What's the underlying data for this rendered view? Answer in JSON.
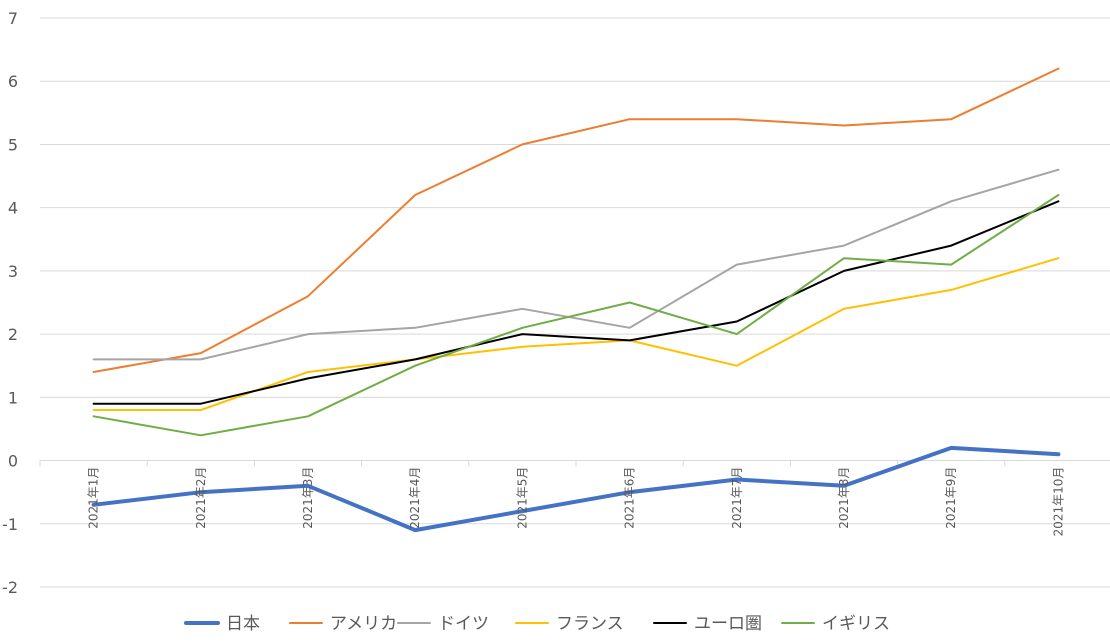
{
  "chart_data": {
    "type": "line",
    "categories": [
      "2021年1月",
      "2021年2月",
      "2021年3月",
      "2021年4月",
      "2021年5月",
      "2021年6月",
      "2021年7月",
      "2021年8月",
      "2021年9月",
      "2021年10月"
    ],
    "ylim": [
      -2,
      7
    ],
    "yticks": [
      -2,
      -1,
      0,
      1,
      2,
      3,
      4,
      5,
      6,
      7
    ],
    "grid": true,
    "legend_position": "bottom",
    "series": [
      {
        "name": "日本",
        "color": "#4472c4",
        "values": [
          -0.7,
          -0.5,
          -0.4,
          -1.1,
          -0.8,
          -0.5,
          -0.3,
          -0.4,
          0.2,
          0.1
        ]
      },
      {
        "name": "アメリカ",
        "color": "#ed7d31",
        "values": [
          1.4,
          1.7,
          2.6,
          4.2,
          5.0,
          5.4,
          5.4,
          5.3,
          5.4,
          6.2
        ]
      },
      {
        "name": "ドイツ",
        "color": "#a5a5a5",
        "values": [
          1.6,
          1.6,
          2.0,
          2.1,
          2.4,
          2.1,
          3.1,
          3.4,
          4.1,
          4.6
        ]
      },
      {
        "name": "フランス",
        "color": "#ffc000",
        "values": [
          0.8,
          0.8,
          1.4,
          1.6,
          1.8,
          1.9,
          1.5,
          2.4,
          2.7,
          3.2
        ]
      },
      {
        "name": "ユーロ圏",
        "color": "#000000",
        "values": [
          0.9,
          0.9,
          1.3,
          1.6,
          2.0,
          1.9,
          2.2,
          3.0,
          3.4,
          4.1
        ]
      },
      {
        "name": "イギリス",
        "color": "#70ad47",
        "values": [
          0.7,
          0.4,
          0.7,
          1.5,
          2.1,
          2.5,
          2.0,
          3.2,
          3.1,
          4.2
        ]
      }
    ]
  }
}
